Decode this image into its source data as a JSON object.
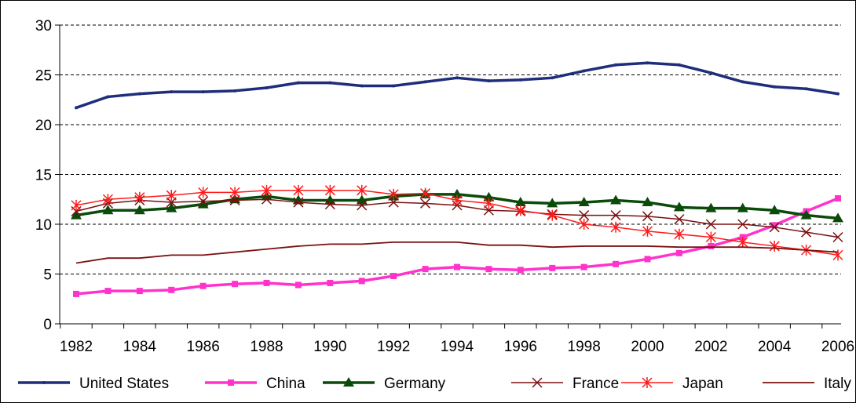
{
  "chart_data": {
    "type": "line",
    "title": "",
    "xlabel": "",
    "ylabel": "",
    "ylim": [
      0,
      30
    ],
    "yticks": [
      0,
      5,
      10,
      15,
      20,
      25,
      30
    ],
    "x": [
      1982,
      1983,
      1984,
      1985,
      1986,
      1987,
      1988,
      1989,
      1990,
      1991,
      1992,
      1993,
      1994,
      1995,
      1996,
      1997,
      1998,
      1999,
      2000,
      2001,
      2002,
      2003,
      2004,
      2005,
      2006
    ],
    "xticks": [
      1982,
      1984,
      1986,
      1988,
      1990,
      1992,
      1994,
      1996,
      1998,
      2000,
      2002,
      2004,
      2006
    ],
    "grid": "horizontal dashed",
    "legend_position": "bottom",
    "series": [
      {
        "name": "United States",
        "color": "#1f2d7a",
        "marker": "dot",
        "values": [
          21.7,
          22.8,
          23.1,
          23.3,
          23.3,
          23.4,
          23.7,
          24.2,
          24.2,
          23.9,
          23.9,
          24.3,
          24.7,
          24.4,
          24.5,
          24.7,
          25.4,
          26.0,
          26.2,
          26.0,
          25.2,
          24.3,
          23.8,
          23.6,
          23.1
        ]
      },
      {
        "name": "China",
        "color": "#ff33cc",
        "marker": "square",
        "values": [
          3.0,
          3.3,
          3.3,
          3.4,
          3.8,
          4.0,
          4.1,
          3.9,
          4.1,
          4.3,
          4.8,
          5.5,
          5.7,
          5.5,
          5.4,
          5.6,
          5.7,
          6.0,
          6.5,
          7.1,
          7.8,
          8.7,
          9.9,
          11.3,
          12.6
        ]
      },
      {
        "name": "Germany",
        "color": "#0a4a0a",
        "marker": "triangle",
        "values": [
          10.9,
          11.4,
          11.4,
          11.6,
          12.0,
          12.5,
          12.8,
          12.4,
          12.4,
          12.4,
          12.8,
          13.0,
          13.0,
          12.7,
          12.2,
          12.1,
          12.2,
          12.4,
          12.2,
          11.7,
          11.6,
          11.6,
          11.4,
          10.9,
          10.6
        ]
      },
      {
        "name": "France",
        "color": "#7a1010",
        "marker": "x",
        "values": [
          11.3,
          12.1,
          12.4,
          12.2,
          12.3,
          12.4,
          12.5,
          12.2,
          12.0,
          11.9,
          12.2,
          12.1,
          11.9,
          11.4,
          11.3,
          11.0,
          10.9,
          10.9,
          10.8,
          10.5,
          10.0,
          10.0,
          9.7,
          9.2,
          8.7
        ]
      },
      {
        "name": "Japan",
        "color": "#ff1a1a",
        "marker": "asterisk",
        "values": [
          11.9,
          12.5,
          12.7,
          12.9,
          13.2,
          13.2,
          13.4,
          13.4,
          13.4,
          13.4,
          13.0,
          13.1,
          12.4,
          12.1,
          11.4,
          10.9,
          10.0,
          9.7,
          9.3,
          9.0,
          8.7,
          8.2,
          7.8,
          7.4,
          6.9
        ]
      },
      {
        "name": "Italy",
        "color": "#7a1010",
        "marker": "none",
        "values": [
          6.1,
          6.6,
          6.6,
          6.9,
          6.9,
          7.2,
          7.5,
          7.8,
          8.0,
          8.0,
          8.2,
          8.2,
          8.2,
          7.9,
          7.9,
          7.7,
          7.8,
          7.8,
          7.8,
          7.7,
          7.7,
          7.7,
          7.6,
          7.4,
          7.2
        ]
      }
    ]
  }
}
